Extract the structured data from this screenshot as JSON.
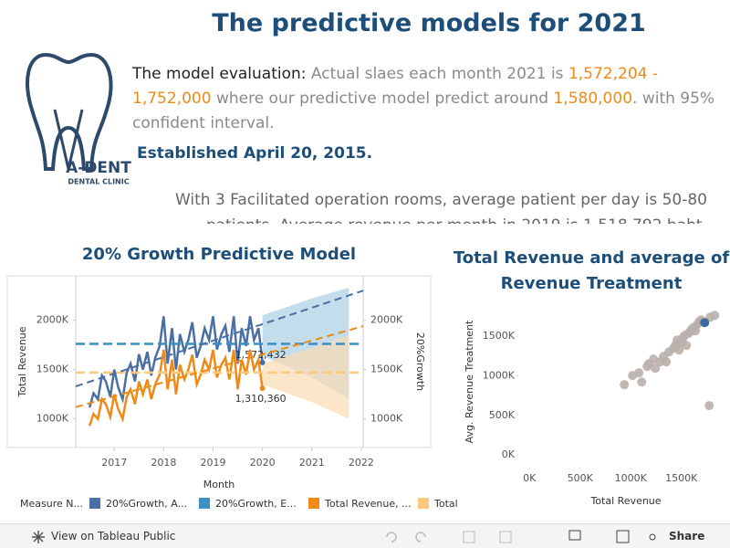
{
  "header": {
    "title": "The predictive models for 2021"
  },
  "logo": {
    "name": "A-DENT",
    "subtitle": "DENTAL CLINIC"
  },
  "evaluation": {
    "label": "The model evaluation:",
    "text1": "Actual slaes each month 2021 is",
    "range": "1,572,204 - 1,752,000",
    "text2": "where our predictive model predict around",
    "prediction": "1,580,000",
    "text3": ". with 95% confident interval."
  },
  "established": "Established April 20, 2015.",
  "description": "With 3 Facilitated operation rooms, average patient per day is 50-80 patients. Average revenue per month in 2019 is 1,518,792 baht.",
  "toolbar": {
    "view": "View on Tableau Public",
    "share": "Share"
  },
  "chart_data": [
    {
      "type": "line",
      "title": "20% Growth Predictive Model",
      "x_label": "Month",
      "y_label": "Total Revenue",
      "y2_label": "20%Growth",
      "legend_title": "Measure N...",
      "x": [
        2016.5,
        2016.58,
        2016.67,
        2016.75,
        2016.83,
        2016.92,
        2017,
        2017.08,
        2017.17,
        2017.25,
        2017.33,
        2017.42,
        2017.5,
        2017.58,
        2017.67,
        2017.75,
        2017.83,
        2017.92,
        2018,
        2018.08,
        2018.17,
        2018.25,
        2018.33,
        2018.42,
        2018.5,
        2018.58,
        2018.67,
        2018.75,
        2018.83,
        2018.92,
        2019,
        2019.08,
        2019.17,
        2019.25,
        2019.33,
        2019.42,
        2019.5,
        2019.58,
        2019.67,
        2019.75,
        2019.83,
        2019.92,
        2020
      ],
      "xlim": [
        2016.22,
        2022.04
      ],
      "xticks": [
        2017,
        2018,
        2019,
        2020,
        2021,
        2022
      ],
      "ylim": [
        710000,
        2450000
      ],
      "yticks": [
        {
          "value": 1000000,
          "label": "1000K"
        },
        {
          "value": 1500000,
          "label": "1500K"
        },
        {
          "value": 2000000,
          "label": "2000K"
        }
      ],
      "y2lim": [
        710000,
        2450000
      ],
      "y2ticks": [
        {
          "value": 1000000,
          "label": "1000K"
        },
        {
          "value": 1500000,
          "label": "1500K"
        },
        {
          "value": 2000000,
          "label": "2000K"
        }
      ],
      "grid": false,
      "series": [
        {
          "name": "20%Growth, A...",
          "color": "#4a6fa5",
          "values": [
            1116000,
            1260000,
            1200000,
            1440000,
            1380000,
            1224000,
            1500000,
            1320000,
            1200000,
            1464000,
            1560000,
            1380000,
            1656000,
            1500000,
            1680000,
            1440000,
            1620000,
            1740000,
            2040000,
            1560000,
            1920000,
            1500000,
            1860000,
            1680000,
            1800000,
            1980000,
            1620000,
            1740000,
            1920000,
            1800000,
            2040000,
            1704000,
            1860000,
            1944000,
            1680000,
            2040000,
            1560000,
            1920000,
            1740000,
            2040000,
            1800000,
            1920000,
            1572432
          ],
          "value_labels": [
            null,
            null,
            null,
            null,
            null,
            null,
            null,
            null,
            null,
            null,
            null,
            null,
            null,
            null,
            null,
            null,
            null,
            null,
            null,
            null,
            null,
            null,
            null,
            null,
            null,
            null,
            null,
            null,
            null,
            null,
            null,
            null,
            null,
            null,
            null,
            null,
            null,
            null,
            null,
            null,
            null,
            null,
            "1,572,432"
          ]
        },
        {
          "name": "20%Growth, E...",
          "color": "#3a8fc4",
          "value": 1760000
        },
        {
          "name": "Total Revenue, ...",
          "color": "#ef8a17",
          "values": [
            930000,
            1050000,
            1000000,
            1200000,
            1150000,
            1020000,
            1250000,
            1100000,
            1000000,
            1220000,
            1300000,
            1150000,
            1380000,
            1250000,
            1400000,
            1200000,
            1350000,
            1450000,
            1700000,
            1300000,
            1600000,
            1250000,
            1550000,
            1400000,
            1500000,
            1650000,
            1350000,
            1450000,
            1600000,
            1500000,
            1700000,
            1420000,
            1550000,
            1620000,
            1400000,
            1700000,
            1300000,
            1600000,
            1450000,
            1700000,
            1500000,
            1600000,
            1310360
          ],
          "value_labels": [
            null,
            null,
            null,
            null,
            null,
            null,
            null,
            null,
            null,
            null,
            null,
            null,
            null,
            null,
            null,
            null,
            null,
            null,
            null,
            null,
            null,
            null,
            null,
            null,
            null,
            null,
            null,
            null,
            null,
            null,
            null,
            null,
            null,
            null,
            null,
            null,
            null,
            null,
            null,
            null,
            null,
            null,
            "1,310,360"
          ]
        },
        {
          "name": "Total",
          "color": "#fcc97a",
          "value": 1470000
        }
      ],
      "trend_lines": [
        {
          "color": "#4a6fa5",
          "x": [
            2016.22,
            2022.04
          ],
          "values": [
            1330000,
            2300000
          ]
        },
        {
          "color": "#ef8a17",
          "x": [
            2016.22,
            2022.04
          ],
          "values": [
            1120000,
            1940000
          ]
        }
      ],
      "forecast_bands": [
        {
          "color": "#a9cfe6",
          "x": [
            2020,
            2021,
            2021.75
          ],
          "lower": [
            1640000,
            1420000,
            1200000
          ],
          "upper": [
            2050000,
            2220000,
            2330000
          ]
        },
        {
          "color": "#fbdcb2",
          "x": [
            2020,
            2021,
            2021.75
          ],
          "lower": [
            1350000,
            1170000,
            1000000
          ],
          "upper": [
            1560000,
            1720000,
            1850000
          ]
        }
      ]
    },
    {
      "type": "scatter",
      "title": "Total Revenue and average of Revenue Treatment",
      "x_label": "Total Revenue",
      "y_label": "Avg. Revenue Treatment",
      "color": "#bab0ab",
      "highlight": {
        "index": 30,
        "color": "#3e6c9c"
      },
      "x": [
        937000,
        1018000,
        1081000,
        1108000,
        1162000,
        1180000,
        1225000,
        1243000,
        1288000,
        1324000,
        1351000,
        1378000,
        1423000,
        1441000,
        1459000,
        1477000,
        1495000,
        1514000,
        1532000,
        1550000,
        1568000,
        1586000,
        1604000,
        1622000,
        1640000,
        1658000,
        1676000,
        1694000,
        1784000,
        1829000,
        1730000,
        1775000
      ],
      "values": [
        888000,
        1003000,
        1038000,
        922000,
        1118000,
        1153000,
        1211000,
        1095000,
        1176000,
        1245000,
        1176000,
        1303000,
        1349000,
        1384000,
        1453000,
        1326000,
        1418000,
        1476000,
        1510000,
        1384000,
        1533000,
        1557000,
        1591000,
        1614000,
        1568000,
        1649000,
        1683000,
        1706000,
        1741000,
        1764000,
        1672000,
        623000
      ],
      "xlim": [
        -110000,
        1980000
      ],
      "xticks": [
        {
          "value": 0,
          "label": "0K"
        },
        {
          "value": 500000,
          "label": "500K"
        },
        {
          "value": 1000000,
          "label": "1000K"
        },
        {
          "value": 1500000,
          "label": "1500K"
        }
      ],
      "ylim": [
        -160000,
        1940000
      ],
      "yticks": [
        {
          "value": 0,
          "label": "0K"
        },
        {
          "value": 500000,
          "label": "500K"
        },
        {
          "value": 1000000,
          "label": "1000K"
        },
        {
          "value": 1500000,
          "label": "1500K"
        }
      ],
      "grid": false
    }
  ]
}
